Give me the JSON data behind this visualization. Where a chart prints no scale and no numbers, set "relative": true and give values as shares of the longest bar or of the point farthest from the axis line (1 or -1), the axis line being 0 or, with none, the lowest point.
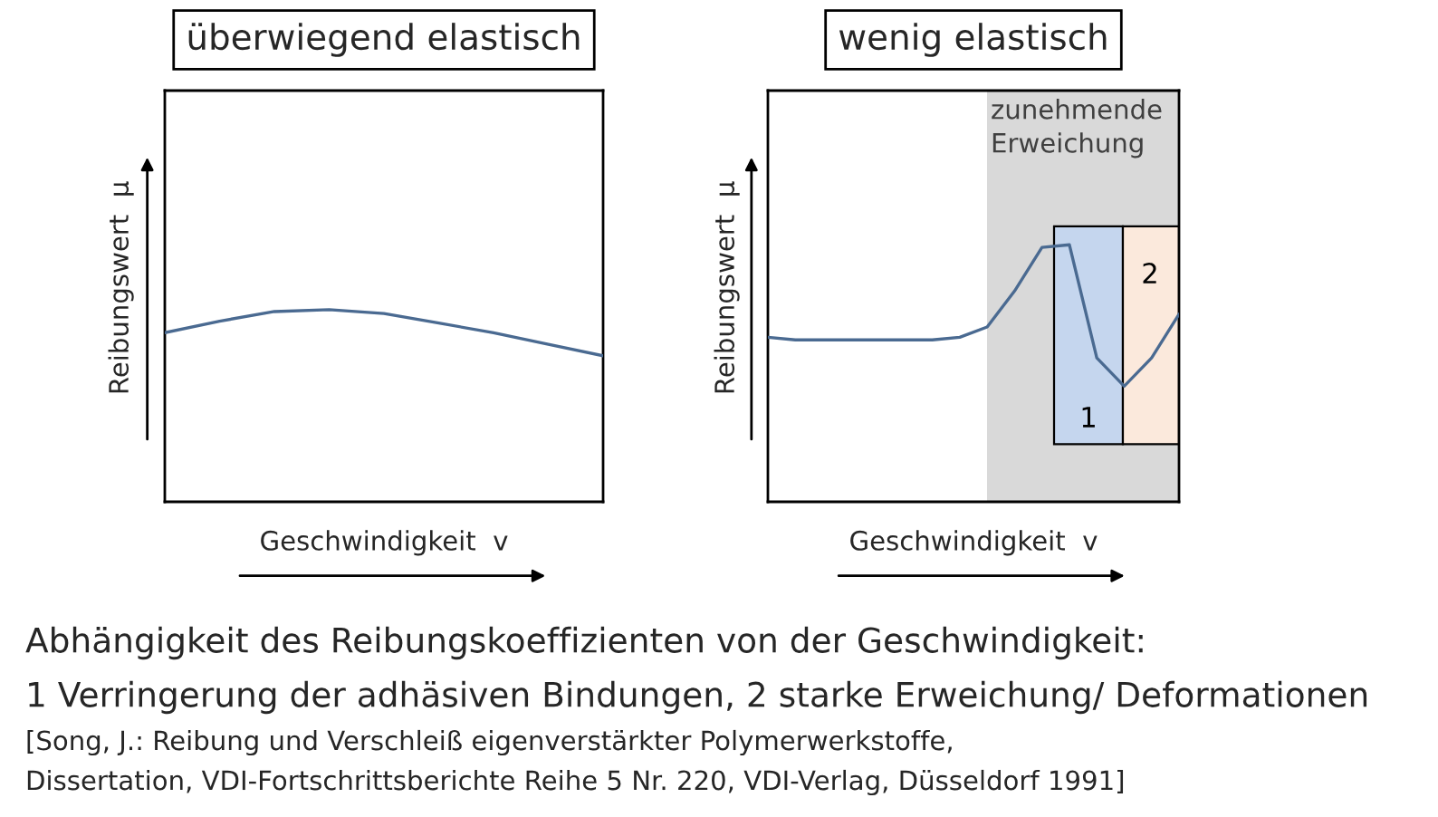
{
  "chart_data": [
    {
      "type": "line",
      "title": "überwiegend elastisch",
      "xlabel": "Geschwindigkeit  v",
      "ylabel": "Reibungswert  μ",
      "relative": true,
      "tick_labels": false,
      "legend": false,
      "categories": [
        null,
        null,
        null,
        null,
        null,
        null,
        null,
        null,
        null
      ],
      "series": [
        {
          "color": "#4a6a91",
          "values": [
            0.88,
            0.94,
            0.99,
            1,
            0.98,
            0.93,
            0.88,
            0.82,
            0.76
          ]
        }
      ],
      "annotations": [
        "Abhängigkeit des Reibungskoeffizienten von der Geschwindigkeit:",
        "1 Verringerung der adhäsiven Bindungen, 2 starke Erweichung/ Deformationen",
        "[Song, J.: Reibung und Verschleiß eigenverstärkter Polymerwerkstoffe,",
        "Dissertation, VDI-Fortschrittsberichte Reihe 5 Nr. 220, VDI-Verlag, Düsseldorf 1991]"
      ]
    },
    {
      "type": "line",
      "title": "wenig elastisch",
      "xlabel": "Geschwindigkeit  v",
      "ylabel": "Reibungswert  μ",
      "relative": true,
      "tick_labels": false,
      "legend": false,
      "categories": [
        null,
        null,
        null,
        null,
        null,
        null,
        null,
        null,
        null,
        null,
        null,
        null,
        null,
        null,
        null,
        null
      ],
      "series": [
        {
          "color": "#4a6a91",
          "values": [
            0.64,
            0.63,
            0.63,
            0.63,
            0.63,
            0.63,
            0.63,
            0.64,
            0.68,
            0.82,
            0.99,
            1,
            0.56,
            0.45,
            0.56,
            0.73
          ]
        }
      ],
      "annotations": [
        "zunehmende\nErweichung",
        "1",
        "2"
      ]
    }
  ]
}
